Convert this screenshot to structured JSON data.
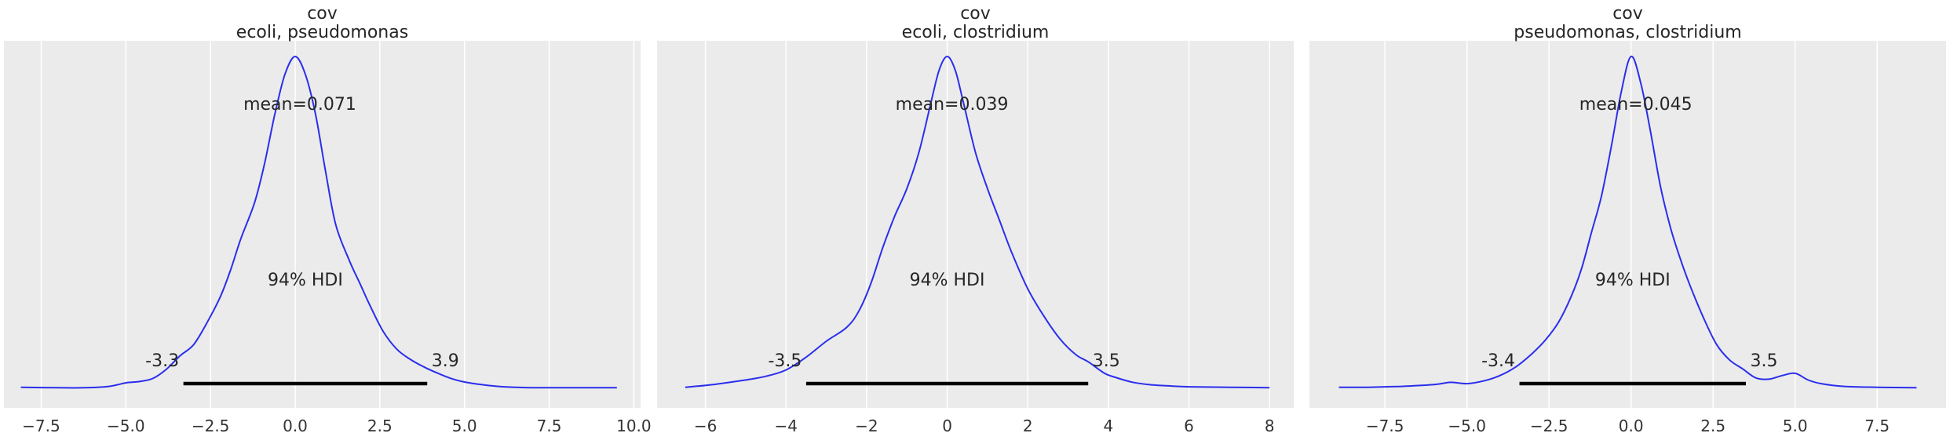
{
  "chart_data": [
    {
      "type": "line",
      "title": "cov\necoli, pseudomonas",
      "title_lines": [
        "cov",
        "ecoli, pseudomonas"
      ],
      "xlabel": "",
      "ylabel": "",
      "xlim": [
        -8.6,
        10.2
      ],
      "xticks": [
        -7.5,
        -5.0,
        -2.5,
        0.0,
        2.5,
        5.0,
        7.5,
        10.0
      ],
      "xtick_labels": [
        "−7.5",
        "−5.0",
        "−2.5",
        "0.0",
        "2.5",
        "5.0",
        "7.5",
        "10.0"
      ],
      "grid": true,
      "series": [
        {
          "color": "#2a2eec",
          "x": [
            -8.1,
            -7.0,
            -6.2,
            -5.5,
            -5.0,
            -4.6,
            -4.2,
            -3.8,
            -3.4,
            -3.0,
            -2.6,
            -2.2,
            -1.9,
            -1.6,
            -1.2,
            -0.9,
            -0.6,
            -0.3,
            0.0,
            0.3,
            0.6,
            0.9,
            1.2,
            1.6,
            1.9,
            2.2,
            2.6,
            3.0,
            3.4,
            3.8,
            4.2,
            4.6,
            5.0,
            5.5,
            6.0,
            6.5,
            7.0,
            8.0,
            9.5
          ],
          "y": [
            0.004,
            0.003,
            0.003,
            0.006,
            0.014,
            0.017,
            0.024,
            0.045,
            0.075,
            0.1,
            0.15,
            0.21,
            0.27,
            0.34,
            0.42,
            0.51,
            0.62,
            0.71,
            0.75,
            0.71,
            0.62,
            0.49,
            0.37,
            0.29,
            0.24,
            0.19,
            0.13,
            0.09,
            0.067,
            0.05,
            0.036,
            0.024,
            0.016,
            0.01,
            0.006,
            0.004,
            0.003,
            0.003,
            0.003
          ]
        }
      ],
      "point_estimate_label": "mean=0.071",
      "hdi_label": "94% HDI",
      "hdi": [
        -3.3,
        3.9
      ],
      "hdi_low_label": "-3.3",
      "hdi_high_label": "3.9"
    },
    {
      "type": "line",
      "title": "cov\necoli, clostridium",
      "title_lines": [
        "cov",
        "ecoli, clostridium"
      ],
      "xlabel": "",
      "ylabel": "",
      "xlim": [
        -7.2,
        8.6
      ],
      "xticks": [
        -6,
        -4,
        -2,
        0,
        2,
        4,
        6,
        8
      ],
      "xtick_labels": [
        "−6",
        "−4",
        "−2",
        "0",
        "2",
        "4",
        "6",
        "8"
      ],
      "grid": true,
      "series": [
        {
          "color": "#2a2eec",
          "x": [
            -6.5,
            -5.8,
            -5.0,
            -4.5,
            -4.0,
            -3.5,
            -3.0,
            -2.5,
            -2.2,
            -1.9,
            -1.6,
            -1.3,
            -1.0,
            -0.7,
            -0.4,
            -0.2,
            0.0,
            0.2,
            0.4,
            0.7,
            1.0,
            1.3,
            1.6,
            2.0,
            2.4,
            2.8,
            3.2,
            3.5,
            3.9,
            4.2,
            4.6,
            5.0,
            5.5,
            6.0,
            7.0,
            8.0
          ],
          "y": [
            0.004,
            0.01,
            0.02,
            0.028,
            0.042,
            0.07,
            0.105,
            0.135,
            0.17,
            0.23,
            0.31,
            0.38,
            0.44,
            0.52,
            0.63,
            0.7,
            0.73,
            0.7,
            0.63,
            0.52,
            0.44,
            0.37,
            0.3,
            0.22,
            0.16,
            0.11,
            0.075,
            0.06,
            0.035,
            0.025,
            0.015,
            0.01,
            0.007,
            0.005,
            0.004,
            0.003
          ]
        }
      ],
      "point_estimate_label": "mean=0.039",
      "hdi_label": "94% HDI",
      "hdi": [
        -3.5,
        3.5
      ],
      "hdi_low_label": "-3.5",
      "hdi_high_label": "3.5"
    },
    {
      "type": "line",
      "title": "cov\npseudomonas, clostridium",
      "title_lines": [
        "cov",
        "pseudomonas, clostridium"
      ],
      "xlabel": "",
      "ylabel": "",
      "xlim": [
        -9.8,
        9.6
      ],
      "xticks": [
        -7.5,
        -5.0,
        -2.5,
        0.0,
        2.5,
        5.0,
        7.5
      ],
      "xtick_labels": [
        "−7.5",
        "−5.0",
        "−2.5",
        "0.0",
        "2.5",
        "5.0",
        "7.5"
      ],
      "grid": true,
      "series": [
        {
          "color": "#2a2eec",
          "x": [
            -8.9,
            -8.0,
            -7.0,
            -6.0,
            -5.5,
            -5.0,
            -4.5,
            -4.0,
            -3.5,
            -3.0,
            -2.6,
            -2.2,
            -1.8,
            -1.5,
            -1.2,
            -0.9,
            -0.6,
            -0.3,
            0.0,
            0.3,
            0.6,
            0.9,
            1.2,
            1.5,
            1.8,
            2.2,
            2.6,
            3.0,
            3.4,
            3.8,
            4.2,
            4.6,
            5.0,
            5.4,
            5.8,
            6.5,
            7.5,
            8.7
          ],
          "y": [
            0.004,
            0.004,
            0.006,
            0.01,
            0.015,
            0.012,
            0.018,
            0.03,
            0.05,
            0.08,
            0.11,
            0.15,
            0.21,
            0.27,
            0.35,
            0.43,
            0.54,
            0.66,
            0.74,
            0.68,
            0.57,
            0.45,
            0.36,
            0.29,
            0.23,
            0.16,
            0.1,
            0.065,
            0.045,
            0.025,
            0.022,
            0.03,
            0.035,
            0.02,
            0.012,
            0.006,
            0.004,
            0.003
          ]
        }
      ],
      "point_estimate_label": "mean=0.045",
      "hdi_label": "94% HDI",
      "hdi": [
        -3.4,
        3.5
      ],
      "hdi_low_label": "-3.4",
      "hdi_high_label": "3.5"
    }
  ],
  "style": {
    "panel_bg": "#ebebeb",
    "grid_color": "#ffffff",
    "line_color": "#2a2eec",
    "hdi_bar_color": "#000000"
  }
}
